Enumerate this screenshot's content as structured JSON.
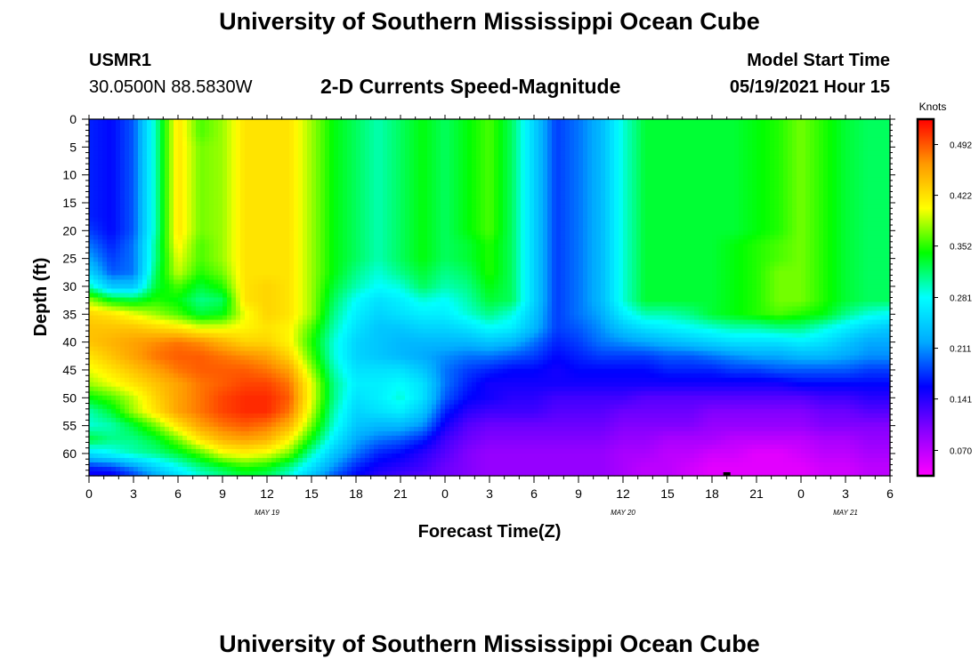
{
  "title": "University of Southern Mississippi Ocean Cube",
  "footer_title": "University of Southern Mississippi Ocean Cube",
  "station": {
    "id": "USMR1",
    "coords": "30.0500N  88.5830W"
  },
  "product_title": "2-D Currents Speed-Magnitude",
  "model_start": {
    "label": "Model Start Time",
    "value": "05/19/2021 Hour 15"
  },
  "colors": {
    "palette": [
      "#ff00ff",
      "#8a00ff",
      "#0000ff",
      "#00aaff",
      "#00ffff",
      "#00ff00",
      "#ffff00",
      "#ff9900",
      "#ff0000"
    ],
    "frame": "#000000",
    "marker": "#000000"
  },
  "chart_data": {
    "type": "heatmap",
    "xlabel": "Forecast Time(Z)",
    "ylabel": "Depth (ft)",
    "colorbar_label": "Knots",
    "x_ticks": [
      "0",
      "3",
      "6",
      "9",
      "12",
      "15",
      "18",
      "21",
      "0",
      "3",
      "6",
      "9",
      "12",
      "15",
      "18",
      "21",
      "0",
      "3",
      "6"
    ],
    "x_date_labels": [
      {
        "text": "MAY 19",
        "at_hour": 12
      },
      {
        "text": "MAY 20",
        "at_hour": 36
      },
      {
        "text": "MAY 21",
        "at_hour": 51
      }
    ],
    "x_range_hours": [
      0,
      54
    ],
    "y_ticks": [
      "0",
      "5",
      "10",
      "15",
      "20",
      "25",
      "30",
      "35",
      "40",
      "45",
      "50",
      "55",
      "60"
    ],
    "ylim": [
      0,
      64
    ],
    "y_inverted": true,
    "colorbar_ticks": [
      "0.492",
      "0.422",
      "0.352",
      "0.281",
      "0.211",
      "0.141",
      "0.070"
    ],
    "colorbar_values": [
      0.492,
      0.422,
      0.352,
      0.281,
      0.211,
      0.141,
      0.07
    ],
    "value_range": [
      0.035,
      0.527
    ],
    "marker": {
      "hour": 43,
      "depth": 64
    },
    "hours": [
      0,
      1.5,
      3,
      4.5,
      6,
      7.5,
      9,
      10.5,
      12,
      13.5,
      15,
      16.5,
      18,
      19.5,
      21,
      22.5,
      24,
      25.5,
      27,
      28.5,
      30,
      31.5,
      33,
      34.5,
      36,
      37.5,
      39,
      40.5,
      42,
      43.5,
      45,
      46.5,
      48,
      49.5,
      51,
      52.5,
      54
    ],
    "depths": [
      0,
      2.5,
      5,
      7.5,
      10,
      12.5,
      15,
      17.5,
      20,
      22.5,
      25,
      27.5,
      30,
      32.5,
      35,
      37.5,
      40,
      42.5,
      45,
      47.5,
      50,
      52.5,
      55,
      57.5,
      60,
      62.5,
      64
    ],
    "values": [
      [
        0.17,
        0.16,
        0.19,
        0.3,
        0.42,
        0.36,
        0.38,
        0.42,
        0.42,
        0.42,
        0.38,
        0.34,
        0.32,
        0.3,
        0.32,
        0.34,
        0.32,
        0.34,
        0.36,
        0.32,
        0.25,
        0.18,
        0.2,
        0.23,
        0.29,
        0.33,
        0.33,
        0.33,
        0.33,
        0.33,
        0.34,
        0.35,
        0.37,
        0.35,
        0.33,
        0.32,
        0.32
      ],
      [
        0.17,
        0.16,
        0.19,
        0.3,
        0.42,
        0.36,
        0.38,
        0.42,
        0.42,
        0.42,
        0.38,
        0.34,
        0.32,
        0.3,
        0.32,
        0.34,
        0.32,
        0.34,
        0.36,
        0.32,
        0.25,
        0.18,
        0.2,
        0.23,
        0.29,
        0.33,
        0.33,
        0.33,
        0.33,
        0.33,
        0.34,
        0.35,
        0.37,
        0.35,
        0.33,
        0.32,
        0.32
      ],
      [
        0.17,
        0.16,
        0.19,
        0.3,
        0.42,
        0.37,
        0.38,
        0.42,
        0.42,
        0.42,
        0.38,
        0.34,
        0.32,
        0.3,
        0.32,
        0.34,
        0.32,
        0.34,
        0.36,
        0.32,
        0.25,
        0.18,
        0.2,
        0.23,
        0.29,
        0.33,
        0.33,
        0.33,
        0.33,
        0.33,
        0.34,
        0.35,
        0.37,
        0.35,
        0.33,
        0.32,
        0.32
      ],
      [
        0.17,
        0.16,
        0.19,
        0.3,
        0.42,
        0.37,
        0.38,
        0.42,
        0.42,
        0.42,
        0.38,
        0.34,
        0.32,
        0.3,
        0.32,
        0.34,
        0.32,
        0.34,
        0.36,
        0.32,
        0.25,
        0.18,
        0.2,
        0.23,
        0.29,
        0.33,
        0.33,
        0.33,
        0.33,
        0.33,
        0.34,
        0.35,
        0.37,
        0.35,
        0.33,
        0.32,
        0.32
      ],
      [
        0.17,
        0.16,
        0.19,
        0.3,
        0.42,
        0.37,
        0.38,
        0.42,
        0.42,
        0.42,
        0.38,
        0.34,
        0.32,
        0.3,
        0.32,
        0.34,
        0.32,
        0.34,
        0.36,
        0.32,
        0.25,
        0.18,
        0.2,
        0.23,
        0.29,
        0.33,
        0.33,
        0.33,
        0.33,
        0.33,
        0.34,
        0.35,
        0.37,
        0.35,
        0.33,
        0.32,
        0.32
      ],
      [
        0.17,
        0.16,
        0.19,
        0.3,
        0.42,
        0.37,
        0.38,
        0.42,
        0.42,
        0.42,
        0.38,
        0.34,
        0.32,
        0.3,
        0.32,
        0.34,
        0.32,
        0.34,
        0.36,
        0.32,
        0.25,
        0.18,
        0.2,
        0.23,
        0.29,
        0.33,
        0.33,
        0.33,
        0.33,
        0.33,
        0.34,
        0.35,
        0.37,
        0.35,
        0.33,
        0.32,
        0.32
      ],
      [
        0.17,
        0.16,
        0.19,
        0.3,
        0.42,
        0.37,
        0.38,
        0.42,
        0.42,
        0.42,
        0.38,
        0.34,
        0.32,
        0.3,
        0.32,
        0.34,
        0.32,
        0.34,
        0.36,
        0.32,
        0.25,
        0.18,
        0.2,
        0.23,
        0.29,
        0.33,
        0.33,
        0.33,
        0.33,
        0.33,
        0.34,
        0.35,
        0.37,
        0.35,
        0.33,
        0.32,
        0.32
      ],
      [
        0.17,
        0.16,
        0.19,
        0.3,
        0.42,
        0.37,
        0.38,
        0.42,
        0.42,
        0.42,
        0.38,
        0.34,
        0.32,
        0.3,
        0.32,
        0.34,
        0.32,
        0.34,
        0.36,
        0.32,
        0.25,
        0.18,
        0.2,
        0.23,
        0.29,
        0.33,
        0.33,
        0.33,
        0.33,
        0.33,
        0.34,
        0.35,
        0.37,
        0.35,
        0.33,
        0.32,
        0.32
      ],
      [
        0.18,
        0.16,
        0.19,
        0.3,
        0.42,
        0.37,
        0.38,
        0.42,
        0.42,
        0.42,
        0.38,
        0.34,
        0.32,
        0.3,
        0.32,
        0.34,
        0.32,
        0.34,
        0.36,
        0.32,
        0.25,
        0.18,
        0.2,
        0.23,
        0.29,
        0.33,
        0.33,
        0.33,
        0.33,
        0.33,
        0.34,
        0.35,
        0.37,
        0.35,
        0.33,
        0.32,
        0.32
      ],
      [
        0.2,
        0.17,
        0.2,
        0.31,
        0.41,
        0.36,
        0.38,
        0.42,
        0.42,
        0.42,
        0.38,
        0.34,
        0.32,
        0.3,
        0.32,
        0.34,
        0.32,
        0.33,
        0.35,
        0.32,
        0.25,
        0.18,
        0.2,
        0.23,
        0.29,
        0.33,
        0.33,
        0.33,
        0.33,
        0.34,
        0.35,
        0.36,
        0.37,
        0.35,
        0.33,
        0.32,
        0.32
      ],
      [
        0.22,
        0.18,
        0.2,
        0.31,
        0.4,
        0.36,
        0.38,
        0.42,
        0.42,
        0.42,
        0.38,
        0.34,
        0.32,
        0.3,
        0.32,
        0.34,
        0.32,
        0.33,
        0.35,
        0.32,
        0.25,
        0.18,
        0.2,
        0.23,
        0.29,
        0.33,
        0.33,
        0.33,
        0.33,
        0.34,
        0.35,
        0.36,
        0.37,
        0.35,
        0.33,
        0.32,
        0.32
      ],
      [
        0.25,
        0.19,
        0.2,
        0.32,
        0.39,
        0.35,
        0.37,
        0.42,
        0.42,
        0.42,
        0.38,
        0.34,
        0.31,
        0.29,
        0.31,
        0.33,
        0.31,
        0.32,
        0.35,
        0.32,
        0.25,
        0.18,
        0.2,
        0.23,
        0.29,
        0.33,
        0.33,
        0.33,
        0.33,
        0.34,
        0.35,
        0.37,
        0.37,
        0.35,
        0.33,
        0.32,
        0.32
      ],
      [
        0.3,
        0.24,
        0.24,
        0.33,
        0.36,
        0.33,
        0.35,
        0.42,
        0.43,
        0.42,
        0.38,
        0.33,
        0.3,
        0.28,
        0.29,
        0.32,
        0.3,
        0.31,
        0.34,
        0.32,
        0.25,
        0.18,
        0.2,
        0.23,
        0.29,
        0.33,
        0.33,
        0.33,
        0.33,
        0.34,
        0.35,
        0.37,
        0.37,
        0.35,
        0.33,
        0.32,
        0.32
      ],
      [
        0.38,
        0.34,
        0.33,
        0.35,
        0.34,
        0.31,
        0.32,
        0.42,
        0.43,
        0.42,
        0.38,
        0.32,
        0.28,
        0.26,
        0.27,
        0.29,
        0.28,
        0.3,
        0.33,
        0.32,
        0.25,
        0.18,
        0.2,
        0.23,
        0.29,
        0.33,
        0.33,
        0.33,
        0.33,
        0.34,
        0.35,
        0.37,
        0.37,
        0.35,
        0.33,
        0.32,
        0.32
      ],
      [
        0.43,
        0.42,
        0.4,
        0.38,
        0.36,
        0.33,
        0.34,
        0.4,
        0.43,
        0.42,
        0.38,
        0.31,
        0.27,
        0.25,
        0.26,
        0.27,
        0.27,
        0.29,
        0.31,
        0.29,
        0.24,
        0.18,
        0.2,
        0.22,
        0.27,
        0.3,
        0.3,
        0.31,
        0.33,
        0.34,
        0.35,
        0.36,
        0.35,
        0.34,
        0.31,
        0.29,
        0.28
      ],
      [
        0.44,
        0.44,
        0.44,
        0.43,
        0.42,
        0.4,
        0.4,
        0.41,
        0.42,
        0.41,
        0.36,
        0.3,
        0.26,
        0.24,
        0.24,
        0.25,
        0.25,
        0.26,
        0.28,
        0.27,
        0.23,
        0.18,
        0.19,
        0.21,
        0.24,
        0.26,
        0.27,
        0.28,
        0.29,
        0.3,
        0.3,
        0.31,
        0.31,
        0.29,
        0.27,
        0.25,
        0.24
      ],
      [
        0.44,
        0.45,
        0.46,
        0.47,
        0.48,
        0.47,
        0.45,
        0.43,
        0.43,
        0.41,
        0.35,
        0.29,
        0.25,
        0.24,
        0.23,
        0.23,
        0.23,
        0.23,
        0.24,
        0.23,
        0.2,
        0.17,
        0.18,
        0.2,
        0.21,
        0.22,
        0.23,
        0.24,
        0.25,
        0.26,
        0.26,
        0.26,
        0.27,
        0.26,
        0.24,
        0.22,
        0.22
      ],
      [
        0.42,
        0.44,
        0.46,
        0.48,
        0.49,
        0.49,
        0.48,
        0.47,
        0.46,
        0.43,
        0.36,
        0.29,
        0.25,
        0.24,
        0.23,
        0.22,
        0.21,
        0.2,
        0.2,
        0.19,
        0.18,
        0.16,
        0.17,
        0.18,
        0.18,
        0.18,
        0.19,
        0.19,
        0.2,
        0.21,
        0.22,
        0.22,
        0.23,
        0.23,
        0.22,
        0.21,
        0.21
      ],
      [
        0.4,
        0.42,
        0.44,
        0.46,
        0.48,
        0.49,
        0.49,
        0.49,
        0.48,
        0.46,
        0.38,
        0.3,
        0.26,
        0.26,
        0.26,
        0.24,
        0.2,
        0.18,
        0.17,
        0.16,
        0.16,
        0.15,
        0.16,
        0.16,
        0.16,
        0.16,
        0.17,
        0.17,
        0.17,
        0.18,
        0.18,
        0.19,
        0.19,
        0.19,
        0.19,
        0.18,
        0.18
      ],
      [
        0.38,
        0.4,
        0.42,
        0.44,
        0.46,
        0.48,
        0.49,
        0.5,
        0.5,
        0.48,
        0.4,
        0.31,
        0.27,
        0.27,
        0.28,
        0.26,
        0.2,
        0.17,
        0.15,
        0.15,
        0.15,
        0.15,
        0.15,
        0.15,
        0.15,
        0.15,
        0.15,
        0.15,
        0.15,
        0.15,
        0.15,
        0.15,
        0.16,
        0.16,
        0.16,
        0.16,
        0.16
      ],
      [
        0.34,
        0.36,
        0.39,
        0.43,
        0.46,
        0.48,
        0.5,
        0.51,
        0.51,
        0.49,
        0.4,
        0.31,
        0.26,
        0.27,
        0.29,
        0.26,
        0.19,
        0.16,
        0.15,
        0.14,
        0.14,
        0.13,
        0.13,
        0.13,
        0.13,
        0.12,
        0.12,
        0.12,
        0.12,
        0.12,
        0.12,
        0.12,
        0.12,
        0.13,
        0.13,
        0.14,
        0.14
      ],
      [
        0.3,
        0.33,
        0.38,
        0.42,
        0.46,
        0.48,
        0.5,
        0.51,
        0.51,
        0.48,
        0.39,
        0.3,
        0.25,
        0.26,
        0.27,
        0.24,
        0.17,
        0.14,
        0.13,
        0.13,
        0.13,
        0.12,
        0.12,
        0.12,
        0.11,
        0.11,
        0.11,
        0.11,
        0.1,
        0.1,
        0.1,
        0.1,
        0.1,
        0.11,
        0.11,
        0.12,
        0.12
      ],
      [
        0.29,
        0.3,
        0.33,
        0.37,
        0.42,
        0.46,
        0.48,
        0.49,
        0.48,
        0.45,
        0.37,
        0.29,
        0.24,
        0.23,
        0.23,
        0.21,
        0.15,
        0.12,
        0.11,
        0.11,
        0.11,
        0.11,
        0.11,
        0.11,
        0.1,
        0.1,
        0.1,
        0.1,
        0.09,
        0.09,
        0.09,
        0.09,
        0.09,
        0.1,
        0.1,
        0.1,
        0.1
      ],
      [
        0.33,
        0.31,
        0.31,
        0.33,
        0.37,
        0.42,
        0.45,
        0.46,
        0.45,
        0.41,
        0.34,
        0.27,
        0.22,
        0.2,
        0.19,
        0.17,
        0.13,
        0.11,
        0.1,
        0.1,
        0.1,
        0.1,
        0.1,
        0.1,
        0.09,
        0.09,
        0.08,
        0.08,
        0.08,
        0.07,
        0.07,
        0.07,
        0.07,
        0.08,
        0.08,
        0.09,
        0.09
      ],
      [
        0.26,
        0.28,
        0.3,
        0.31,
        0.33,
        0.36,
        0.4,
        0.41,
        0.4,
        0.37,
        0.3,
        0.24,
        0.2,
        0.17,
        0.16,
        0.14,
        0.12,
        0.1,
        0.09,
        0.09,
        0.09,
        0.09,
        0.09,
        0.09,
        0.08,
        0.08,
        0.07,
        0.07,
        0.06,
        0.06,
        0.05,
        0.05,
        0.06,
        0.07,
        0.07,
        0.08,
        0.08
      ],
      [
        0.17,
        0.18,
        0.21,
        0.25,
        0.28,
        0.31,
        0.33,
        0.35,
        0.34,
        0.31,
        0.26,
        0.21,
        0.17,
        0.15,
        0.14,
        0.13,
        0.11,
        0.1,
        0.09,
        0.09,
        0.09,
        0.09,
        0.09,
        0.09,
        0.08,
        0.07,
        0.07,
        0.06,
        0.05,
        0.05,
        0.05,
        0.05,
        0.05,
        0.06,
        0.06,
        0.07,
        0.07
      ],
      [
        0.15,
        0.15,
        0.18,
        0.22,
        0.26,
        0.29,
        0.31,
        0.33,
        0.32,
        0.29,
        0.24,
        0.19,
        0.16,
        0.14,
        0.13,
        0.12,
        0.11,
        0.1,
        0.09,
        0.09,
        0.09,
        0.09,
        0.09,
        0.09,
        0.08,
        0.07,
        0.07,
        0.06,
        0.05,
        0.05,
        0.05,
        0.05,
        0.05,
        0.06,
        0.06,
        0.07,
        0.07
      ]
    ]
  }
}
